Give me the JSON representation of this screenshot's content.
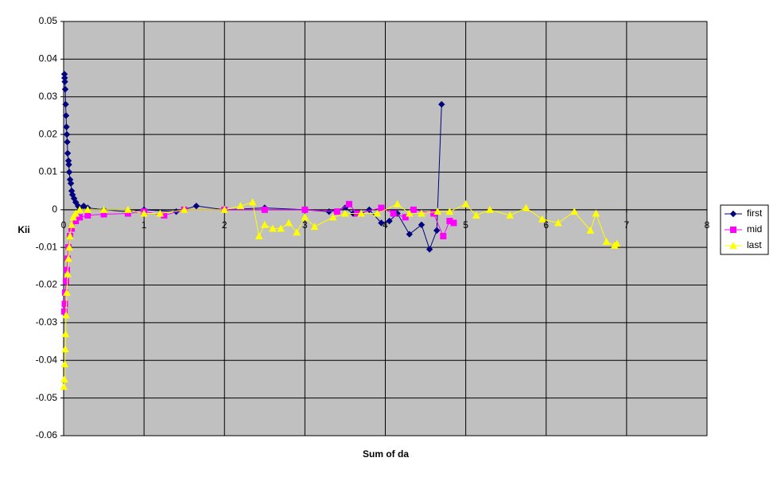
{
  "chart_data": {
    "type": "scatter-line",
    "x_label": "Sum of da",
    "y_label": "Kii",
    "xlim": [
      0,
      8
    ],
    "xticks": [
      0,
      1,
      2,
      3,
      4,
      5,
      6,
      7,
      8
    ],
    "ylim": [
      -0.06,
      0.05
    ],
    "yticks": [
      -0.06,
      -0.05,
      -0.04,
      -0.03,
      -0.02,
      -0.01,
      0,
      0.01,
      0.02,
      0.03,
      0.04,
      0.05
    ],
    "grid": true,
    "legend": "right",
    "series": [
      {
        "name": "first",
        "color": "#000080",
        "marker": "diamond",
        "x": [
          0.01,
          0.012,
          0.015,
          0.02,
          0.025,
          0.03,
          0.035,
          0.04,
          0.045,
          0.05,
          0.06,
          0.065,
          0.07,
          0.08,
          0.09,
          0.1,
          0.11,
          0.13,
          0.15,
          0.18,
          0.2,
          0.25,
          0.3,
          0.5,
          0.8,
          1.0,
          1.4,
          1.65,
          2.0,
          2.5,
          3.0,
          3.3,
          3.5,
          3.6,
          3.7,
          3.8,
          3.95,
          4.05,
          4.15,
          4.3,
          4.45,
          4.55,
          4.64,
          4.7
        ],
        "values": [
          0.036,
          0.035,
          0.034,
          0.032,
          0.028,
          0.025,
          0.022,
          0.02,
          0.018,
          0.015,
          0.013,
          0.012,
          0.01,
          0.008,
          0.007,
          0.005,
          0.004,
          0.003,
          0.002,
          0.001,
          0.0005,
          0.001,
          0.0005,
          0,
          -0.0005,
          0,
          -0.0005,
          0.001,
          0,
          0.0005,
          0,
          -0.0005,
          0.0005,
          -0.001,
          -0.001,
          0,
          -0.0035,
          -0.003,
          -0.001,
          -0.0065,
          -0.004,
          -0.0105,
          -0.0055,
          0.028
        ]
      },
      {
        "name": "mid",
        "color": "#FF00FF",
        "marker": "square",
        "x": [
          0.01,
          0.015,
          0.02,
          0.03,
          0.04,
          0.05,
          0.06,
          0.08,
          0.1,
          0.15,
          0.2,
          0.3,
          0.5,
          0.8,
          1.0,
          1.25,
          1.5,
          2.0,
          2.5,
          3.0,
          3.4,
          3.55,
          3.65,
          3.95,
          4.1,
          4.25,
          4.35,
          4.6,
          4.72,
          4.8,
          4.85
        ],
        "values": [
          -0.027,
          -0.025,
          -0.022,
          -0.019,
          -0.016,
          -0.013,
          -0.01,
          -0.007,
          -0.005,
          -0.003,
          -0.002,
          -0.0015,
          -0.0012,
          -0.001,
          -0.0005,
          -0.0015,
          0,
          0,
          0,
          0,
          -0.0005,
          0.0015,
          -0.001,
          0.0005,
          -0.001,
          -0.002,
          0,
          -0.001,
          -0.007,
          -0.003,
          -0.0035
        ]
      },
      {
        "name": "last",
        "color": "#FFFF00",
        "marker": "triangle",
        "x": [
          0.005,
          0.01,
          0.015,
          0.02,
          0.025,
          0.03,
          0.04,
          0.05,
          0.06,
          0.07,
          0.08,
          0.1,
          0.12,
          0.15,
          0.2,
          0.3,
          0.5,
          0.8,
          1.0,
          1.2,
          1.5,
          2.0,
          2.2,
          2.35,
          2.43,
          2.5,
          2.6,
          2.7,
          2.8,
          2.9,
          3.0,
          3.12,
          3.35,
          3.5,
          3.7,
          3.9,
          4.15,
          4.3,
          4.45,
          4.65,
          4.8,
          5.0,
          5.13,
          5.3,
          5.55,
          5.75,
          5.95,
          6.15,
          6.35,
          6.55,
          6.62,
          6.75,
          6.85,
          6.88
        ],
        "values": [
          -0.047,
          -0.045,
          -0.041,
          -0.037,
          -0.033,
          -0.028,
          -0.022,
          -0.017,
          -0.013,
          -0.01,
          -0.007,
          -0.004,
          -0.002,
          -0.001,
          0,
          0,
          0,
          0,
          -0.001,
          -0.001,
          0,
          0,
          0.001,
          0.002,
          -0.007,
          -0.004,
          -0.005,
          -0.005,
          -0.0035,
          -0.006,
          -0.002,
          -0.0045,
          -0.002,
          -0.001,
          -0.001,
          -0.001,
          0.0015,
          -0.001,
          -0.001,
          -0.0005,
          -0.0005,
          0.0015,
          -0.0015,
          0,
          -0.0015,
          0.0005,
          -0.0025,
          -0.0035,
          -0.0005,
          -0.0055,
          -0.001,
          -0.0085,
          -0.0095,
          -0.009
        ]
      }
    ]
  }
}
